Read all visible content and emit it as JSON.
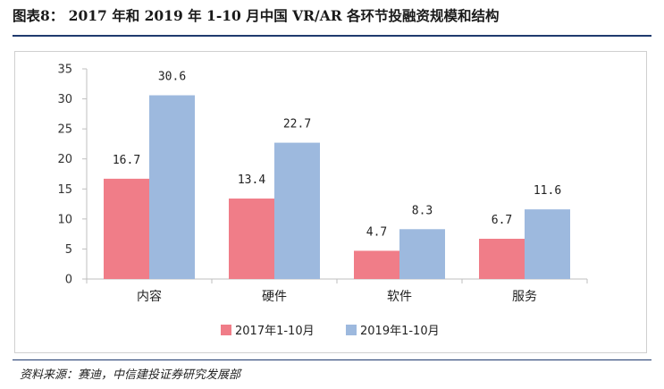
{
  "figure": {
    "title": "图表8：  2017 年和 2019 年 1-10 月中国 VR/AR 各环节投融资规模和结构",
    "source": "资料来源：赛迪，中信建投证券研究发展部"
  },
  "chart_data": {
    "type": "bar",
    "categories": [
      "内容",
      "硬件",
      "软件",
      "服务"
    ],
    "series": [
      {
        "name": "2017年1-10月",
        "values": [
          16.7,
          13.4,
          4.7,
          6.7
        ],
        "color": "#f07d88"
      },
      {
        "name": "2019年1-10月",
        "values": [
          30.6,
          22.7,
          8.3,
          11.6
        ],
        "color": "#9db9de"
      }
    ],
    "yticks": [
      0,
      5,
      10,
      15,
      20,
      25,
      30,
      35
    ],
    "ylim": [
      0,
      35
    ],
    "data_labels": true,
    "grid": false,
    "legend_position": "bottom-center",
    "axis_color": "#bfbfbf"
  }
}
